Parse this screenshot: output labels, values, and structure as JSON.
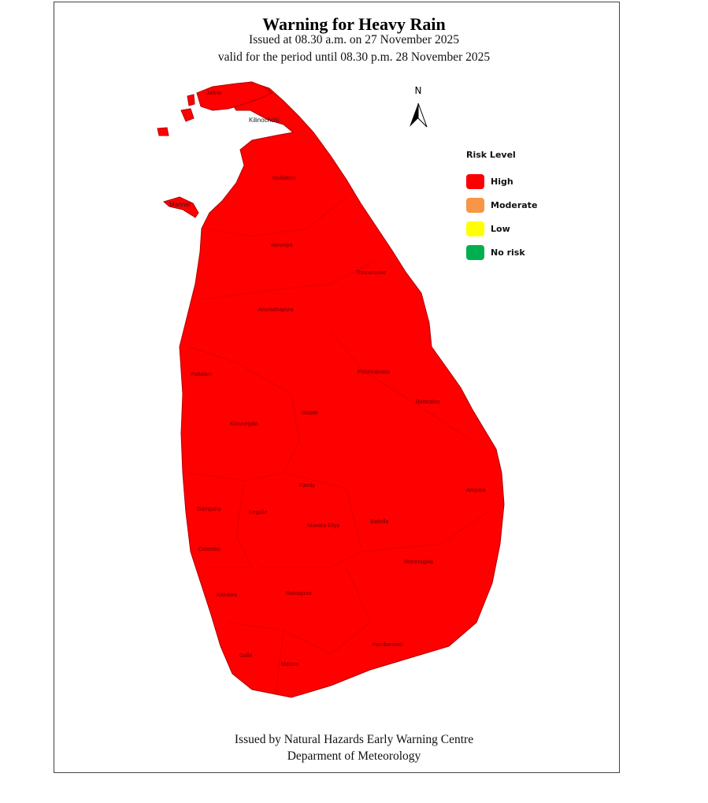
{
  "header": {
    "title": "Warning  for Heavy Rain",
    "issued": "Issued at 08.30 a.m. on 27 November 2025",
    "validity": "valid for the period until 08.30 p.m. 28 November 2025"
  },
  "north_arrow": {
    "label": "N"
  },
  "legend": {
    "title": "Risk Level",
    "items": [
      {
        "label": "High",
        "color": "#ff0000"
      },
      {
        "label": "Moderate",
        "color": "#f79646"
      },
      {
        "label": "Low",
        "color": "#ffff00"
      },
      {
        "label": "No risk",
        "color": "#00b050"
      }
    ]
  },
  "map": {
    "fill_color": "#ff0000",
    "risk_all_districts": "High",
    "districts": [
      "Jaffna",
      "Kilinochchi",
      "Mannar",
      "Mullaitivu",
      "Vavuniya",
      "Trincomalee",
      "Anuradhapura",
      "Puttalam",
      "Polonnaruwa",
      "Batticaloa",
      "Kurunegala",
      "Matale",
      "Kandy",
      "Ampara",
      "Gampaha",
      "Kegalle",
      "Nuwara Eliya",
      "Badulla",
      "Colombo",
      "Moneragala",
      "Kalutara",
      "Ratnapura",
      "Hambantota",
      "Galle",
      "Matara"
    ]
  },
  "footer": {
    "line1": "Issued by Natural Hazards Early Warning Centre",
    "line2": "Deparment of Meteorology"
  }
}
